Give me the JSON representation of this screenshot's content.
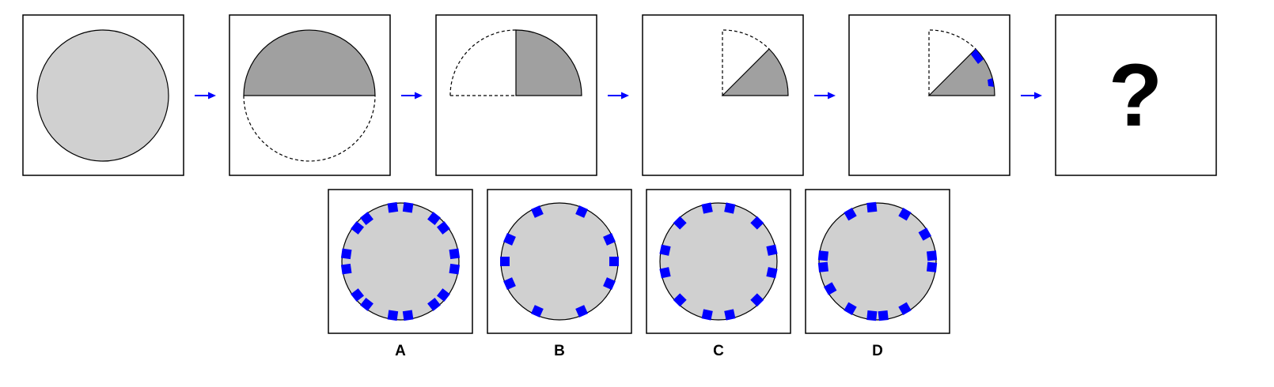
{
  "sequence": {
    "steps": [
      {
        "name": "full-circle"
      },
      {
        "name": "fold-half"
      },
      {
        "name": "fold-quarter"
      },
      {
        "name": "fold-eighth"
      },
      {
        "name": "cut-notches"
      },
      {
        "name": "unknown-result"
      }
    ],
    "question_mark": "?"
  },
  "options": [
    {
      "label": "A"
    },
    {
      "label": "B"
    },
    {
      "label": "C"
    },
    {
      "label": "D"
    }
  ],
  "colors": {
    "paper": "#d0d0d0",
    "folded": "#a0a0a0",
    "cut": "#0000ff",
    "arrow": "#0000ff",
    "border": "#000000",
    "background": "#ffffff"
  }
}
